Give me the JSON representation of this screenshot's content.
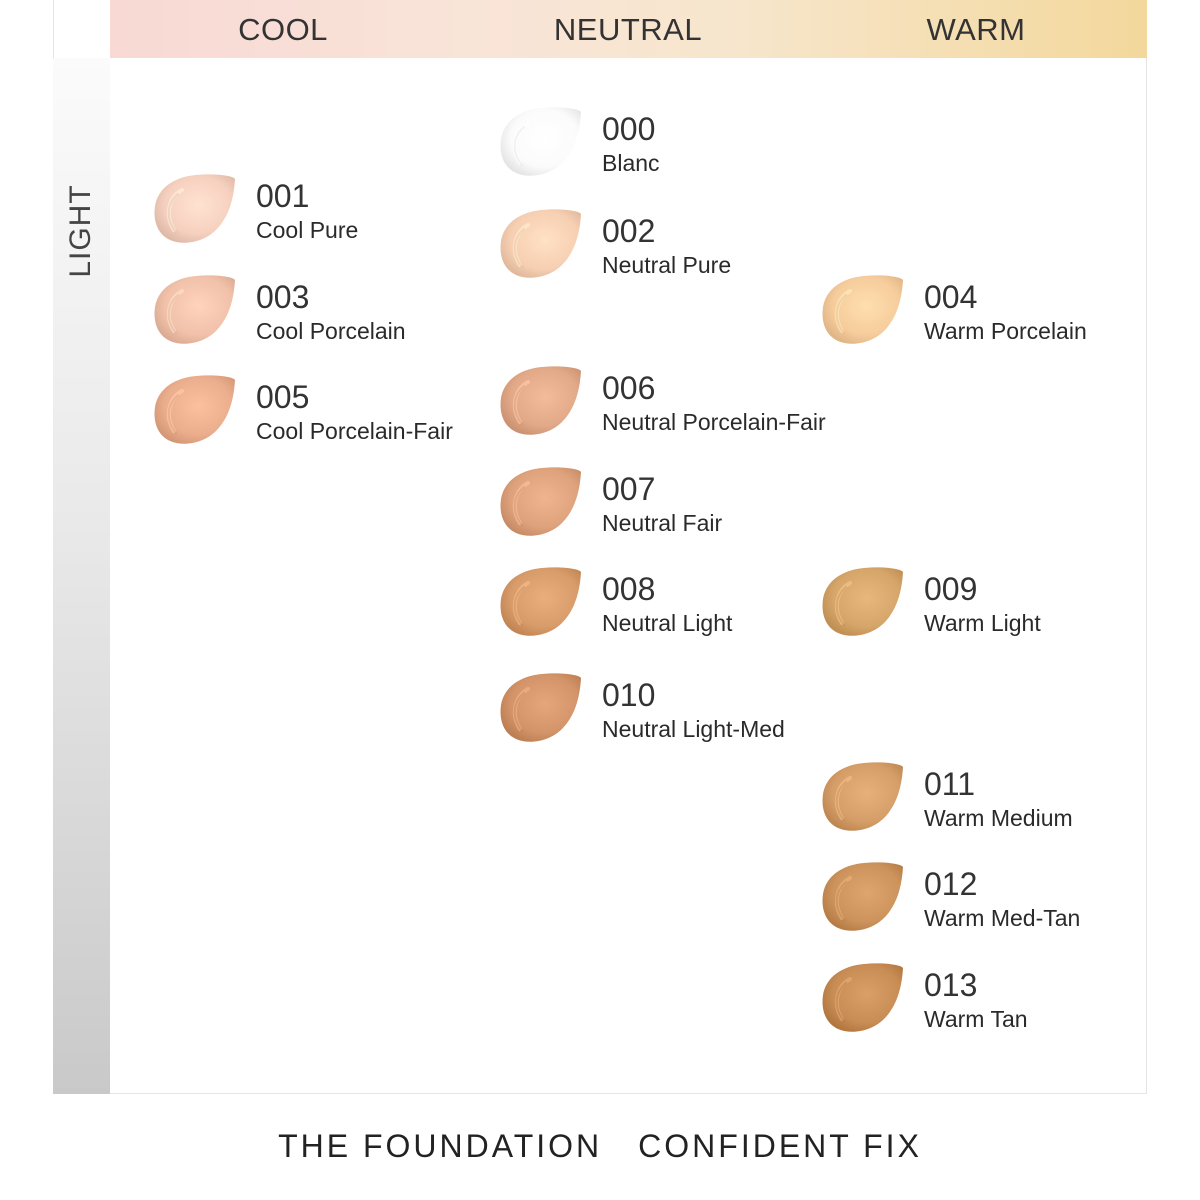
{
  "header": {
    "cool": "COOL",
    "neutral": "NEUTRAL",
    "warm": "WARM"
  },
  "side": {
    "label": "LIGHT"
  },
  "shades": [
    {
      "code": "000",
      "name": "Blanc",
      "color": "#fbfbfb",
      "column": "neutral"
    },
    {
      "code": "001",
      "name": "Cool Pure",
      "color": "#f6d0bf",
      "column": "cool"
    },
    {
      "code": "002",
      "name": "Neutral Pure",
      "color": "#f7cfb2",
      "column": "neutral"
    },
    {
      "code": "003",
      "name": "Cool Porcelain",
      "color": "#f1c1aa",
      "column": "cool"
    },
    {
      "code": "004",
      "name": "Warm Porcelain",
      "color": "#f6cc9c",
      "column": "warm"
    },
    {
      "code": "005",
      "name": "Cool Porcelain-Fair",
      "color": "#eaae8d",
      "column": "cool"
    },
    {
      "code": "006",
      "name": "Neutral Porcelain-Fair",
      "color": "#e2a988",
      "column": "neutral"
    },
    {
      "code": "007",
      "name": "Neutral Fair",
      "color": "#dea27c",
      "column": "neutral"
    },
    {
      "code": "008",
      "name": "Neutral Light",
      "color": "#d89b6a",
      "column": "neutral"
    },
    {
      "code": "009",
      "name": "Warm Light",
      "color": "#d6a56a",
      "column": "warm"
    },
    {
      "code": "010",
      "name": "Neutral Light-Med",
      "color": "#d29468",
      "column": "neutral"
    },
    {
      "code": "011",
      "name": "Warm Medium",
      "color": "#d59e68",
      "column": "warm"
    },
    {
      "code": "012",
      "name": "Warm Med-Tan",
      "color": "#cd935c",
      "column": "warm"
    },
    {
      "code": "013",
      "name": "Warm Tan",
      "color": "#c88c55",
      "column": "warm"
    }
  ],
  "footer": {
    "left": "THE FOUNDATION",
    "right": "CONFIDENT FIX"
  }
}
